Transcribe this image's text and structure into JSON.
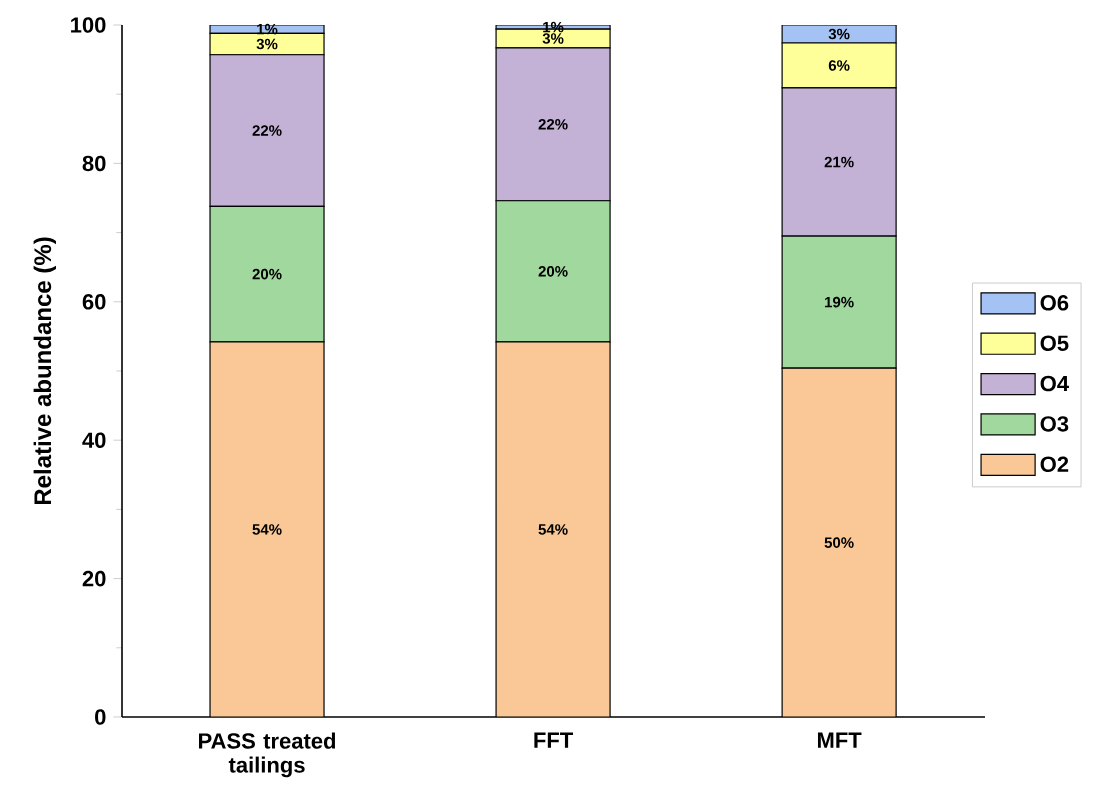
{
  "chart_data": {
    "type": "bar",
    "stacked": true,
    "ylabel": "Relative abundance (%)",
    "categories": [
      "PASS treated tailings",
      "FFT",
      "MFT"
    ],
    "series": [
      {
        "name": "O2",
        "color": "#f9c896",
        "values": [
          54.2,
          54.2,
          50.4
        ],
        "value_labels": [
          "54%",
          "54%",
          "50%"
        ]
      },
      {
        "name": "O3",
        "color": "#a0d89e",
        "values": [
          19.6,
          20.4,
          19.1
        ],
        "value_labels": [
          "20%",
          "20%",
          "19%"
        ]
      },
      {
        "name": "O4",
        "color": "#c3b2d6",
        "values": [
          21.9,
          22.1,
          21.4
        ],
        "value_labels": [
          "22%",
          "22%",
          "21%"
        ]
      },
      {
        "name": "O5",
        "color": "#ffff99",
        "values": [
          3.1,
          2.7,
          6.5
        ],
        "value_labels": [
          "3%",
          "3%",
          "6%"
        ]
      },
      {
        "name": "O6",
        "color": "#a4c2f4",
        "values": [
          1.2,
          0.6,
          2.6
        ],
        "value_labels": [
          "1%",
          "1%",
          "3%"
        ]
      }
    ],
    "ylim": [
      0,
      100
    ],
    "yticks": [
      0,
      20,
      40,
      60,
      80,
      100
    ],
    "legend": "right",
    "grid": false
  }
}
